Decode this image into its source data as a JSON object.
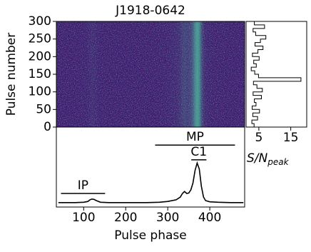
{
  "chart_data": [
    {
      "type": "heatmap",
      "title": "J1918-0642",
      "ylabel": "Pulse number",
      "xlim": [
        35,
        483
      ],
      "ylim": [
        0,
        300
      ],
      "yticks": [
        0,
        50,
        100,
        150,
        200,
        250,
        300
      ]
    },
    {
      "type": "line",
      "xlabel": "Pulse phase",
      "color": "#000000",
      "xlim": [
        35,
        483
      ],
      "ylim": [
        -0.1,
        1.9
      ],
      "xticks": [
        100,
        200,
        300,
        400
      ],
      "x": [
        40,
        60,
        80,
        100,
        110,
        115,
        120,
        125,
        130,
        140,
        160,
        200,
        250,
        280,
        300,
        320,
        330,
        335,
        340,
        345,
        350,
        355,
        360,
        365,
        370,
        375,
        380,
        385,
        390,
        400,
        420,
        450,
        480
      ],
      "values": [
        0.01,
        0.01,
        0.01,
        0.02,
        0.04,
        0.08,
        0.1,
        0.09,
        0.06,
        0.02,
        0.01,
        0.01,
        0.01,
        0.02,
        0.04,
        0.08,
        0.15,
        0.24,
        0.29,
        0.24,
        0.25,
        0.33,
        0.5,
        0.82,
        1.0,
        0.85,
        0.42,
        0.15,
        0.06,
        0.03,
        0.02,
        0.01,
        0.01
      ],
      "annotations": [
        {
          "text": "IP",
          "x": [
            46,
            151
          ],
          "y": 0.24
        },
        {
          "text": "MP",
          "x": [
            270,
            460
          ],
          "y": 1.45
        },
        {
          "text": "C1",
          "x": [
            356,
            392
          ],
          "y": 1.08
        }
      ]
    },
    {
      "type": "stairs",
      "xlabel": "S/N",
      "xlabel_sub": "peak",
      "color": "#000000",
      "xlim": [
        1,
        20
      ],
      "xticks": [
        5,
        15
      ],
      "ylim": [
        0,
        300
      ],
      "y": [
        0,
        10,
        20,
        30,
        40,
        50,
        60,
        70,
        80,
        90,
        100,
        110,
        120,
        130,
        140,
        150,
        160,
        170,
        180,
        190,
        200,
        210,
        220,
        230,
        240,
        250,
        260,
        270,
        280,
        290,
        300
      ],
      "values": [
        3.5,
        2.8,
        4.6,
        3.1,
        5.2,
        2.9,
        4.1,
        3.6,
        5.8,
        3.2,
        6.1,
        4.4,
        3.3,
        18.2,
        4.9,
        3.7,
        2.6,
        4.2,
        3.4,
        5.1,
        3.0,
        4.7,
        6.3,
        3.8,
        5.5,
        7.2,
        4.0,
        3.2,
        6.8,
        3.6,
        2.9
      ]
    }
  ]
}
